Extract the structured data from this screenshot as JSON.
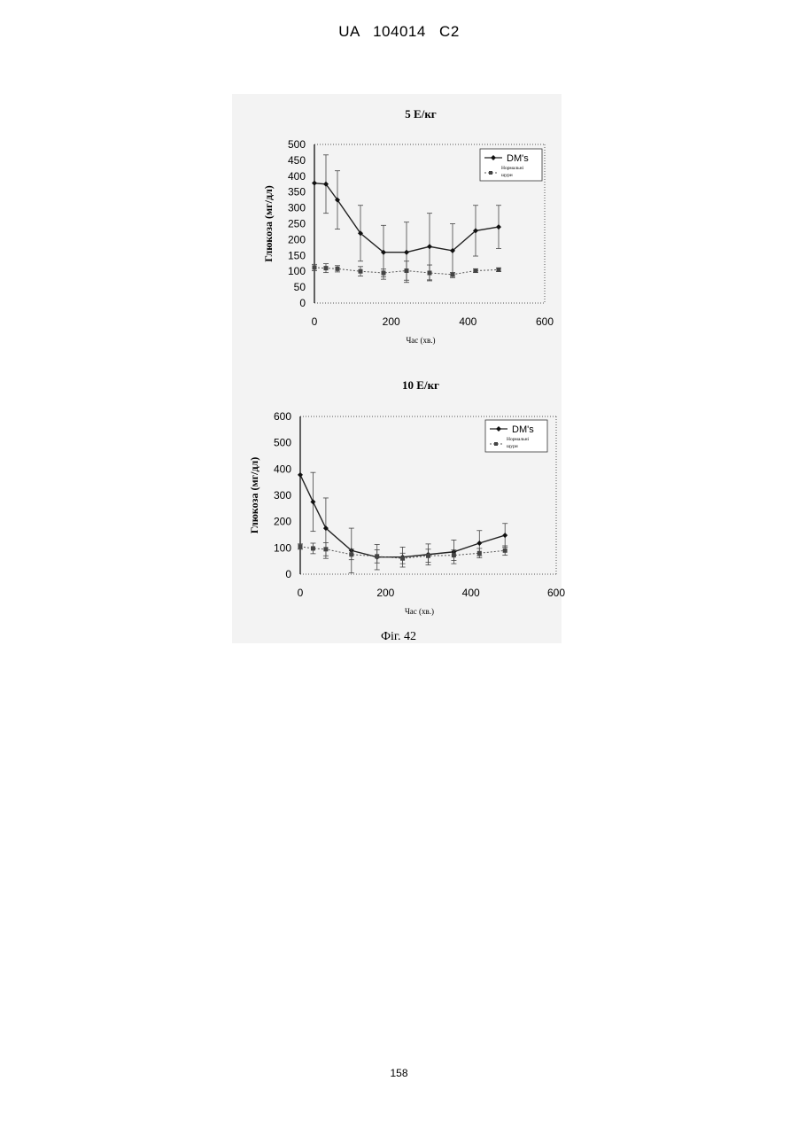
{
  "header": {
    "text": "UA 104014 C2"
  },
  "figure_caption": "Фіг. 42",
  "page_number": "158",
  "chart_data": [
    {
      "type": "line",
      "title": "5 Е/кг",
      "xlabel": "Час (хв.)",
      "ylabel": "Глюкоза (мг/дл)",
      "xlim": [
        0,
        600
      ],
      "ylim": [
        0,
        500
      ],
      "xticks": [
        0,
        200,
        400,
        600
      ],
      "yticks": [
        0,
        50,
        100,
        150,
        200,
        250,
        300,
        350,
        400,
        450,
        500
      ],
      "grid": false,
      "legend_position": "top-right",
      "series": [
        {
          "name": "DM's",
          "marker": "diamond",
          "style": "solid",
          "x": [
            0,
            30,
            60,
            120,
            180,
            240,
            300,
            360,
            420,
            480
          ],
          "y": [
            378,
            375,
            325,
            220,
            160,
            160,
            178,
            165,
            228,
            240
          ],
          "err": [
            0,
            92,
            92,
            88,
            85,
            95,
            105,
            85,
            80,
            68
          ]
        },
        {
          "name": "Нормальні щури",
          "marker": "square",
          "style": "dotted",
          "x": [
            0,
            30,
            60,
            120,
            180,
            240,
            300,
            360,
            420,
            480
          ],
          "y": [
            112,
            110,
            108,
            100,
            95,
            102,
            95,
            90,
            102,
            105
          ],
          "err": [
            10,
            14,
            10,
            15,
            12,
            30,
            25,
            6,
            6,
            6
          ]
        }
      ]
    },
    {
      "type": "line",
      "title": "10 Е/кг",
      "xlabel": "Час (хв.)",
      "ylabel": "Глюкоза (мг/дл)",
      "xlim": [
        0,
        600
      ],
      "ylim": [
        0,
        600
      ],
      "xticks": [
        0,
        200,
        400,
        600
      ],
      "yticks": [
        0,
        100,
        200,
        300,
        400,
        500,
        600
      ],
      "grid": false,
      "legend_position": "top-right",
      "series": [
        {
          "name": "DM's",
          "marker": "diamond",
          "style": "solid",
          "x": [
            0,
            30,
            60,
            120,
            180,
            240,
            300,
            360,
            420,
            480
          ],
          "y": [
            378,
            275,
            175,
            90,
            65,
            65,
            75,
            85,
            118,
            148
          ],
          "err": [
            0,
            112,
            115,
            85,
            48,
            38,
            40,
            45,
            48,
            45
          ]
        },
        {
          "name": "Нормальні щури",
          "marker": "square",
          "style": "dotted",
          "x": [
            0,
            30,
            60,
            120,
            180,
            240,
            300,
            360,
            420,
            480
          ],
          "y": [
            105,
            98,
            95,
            75,
            68,
            60,
            70,
            72,
            80,
            90
          ],
          "err": [
            10,
            20,
            25,
            20,
            25,
            20,
            25,
            20,
            18,
            18
          ]
        }
      ]
    }
  ]
}
